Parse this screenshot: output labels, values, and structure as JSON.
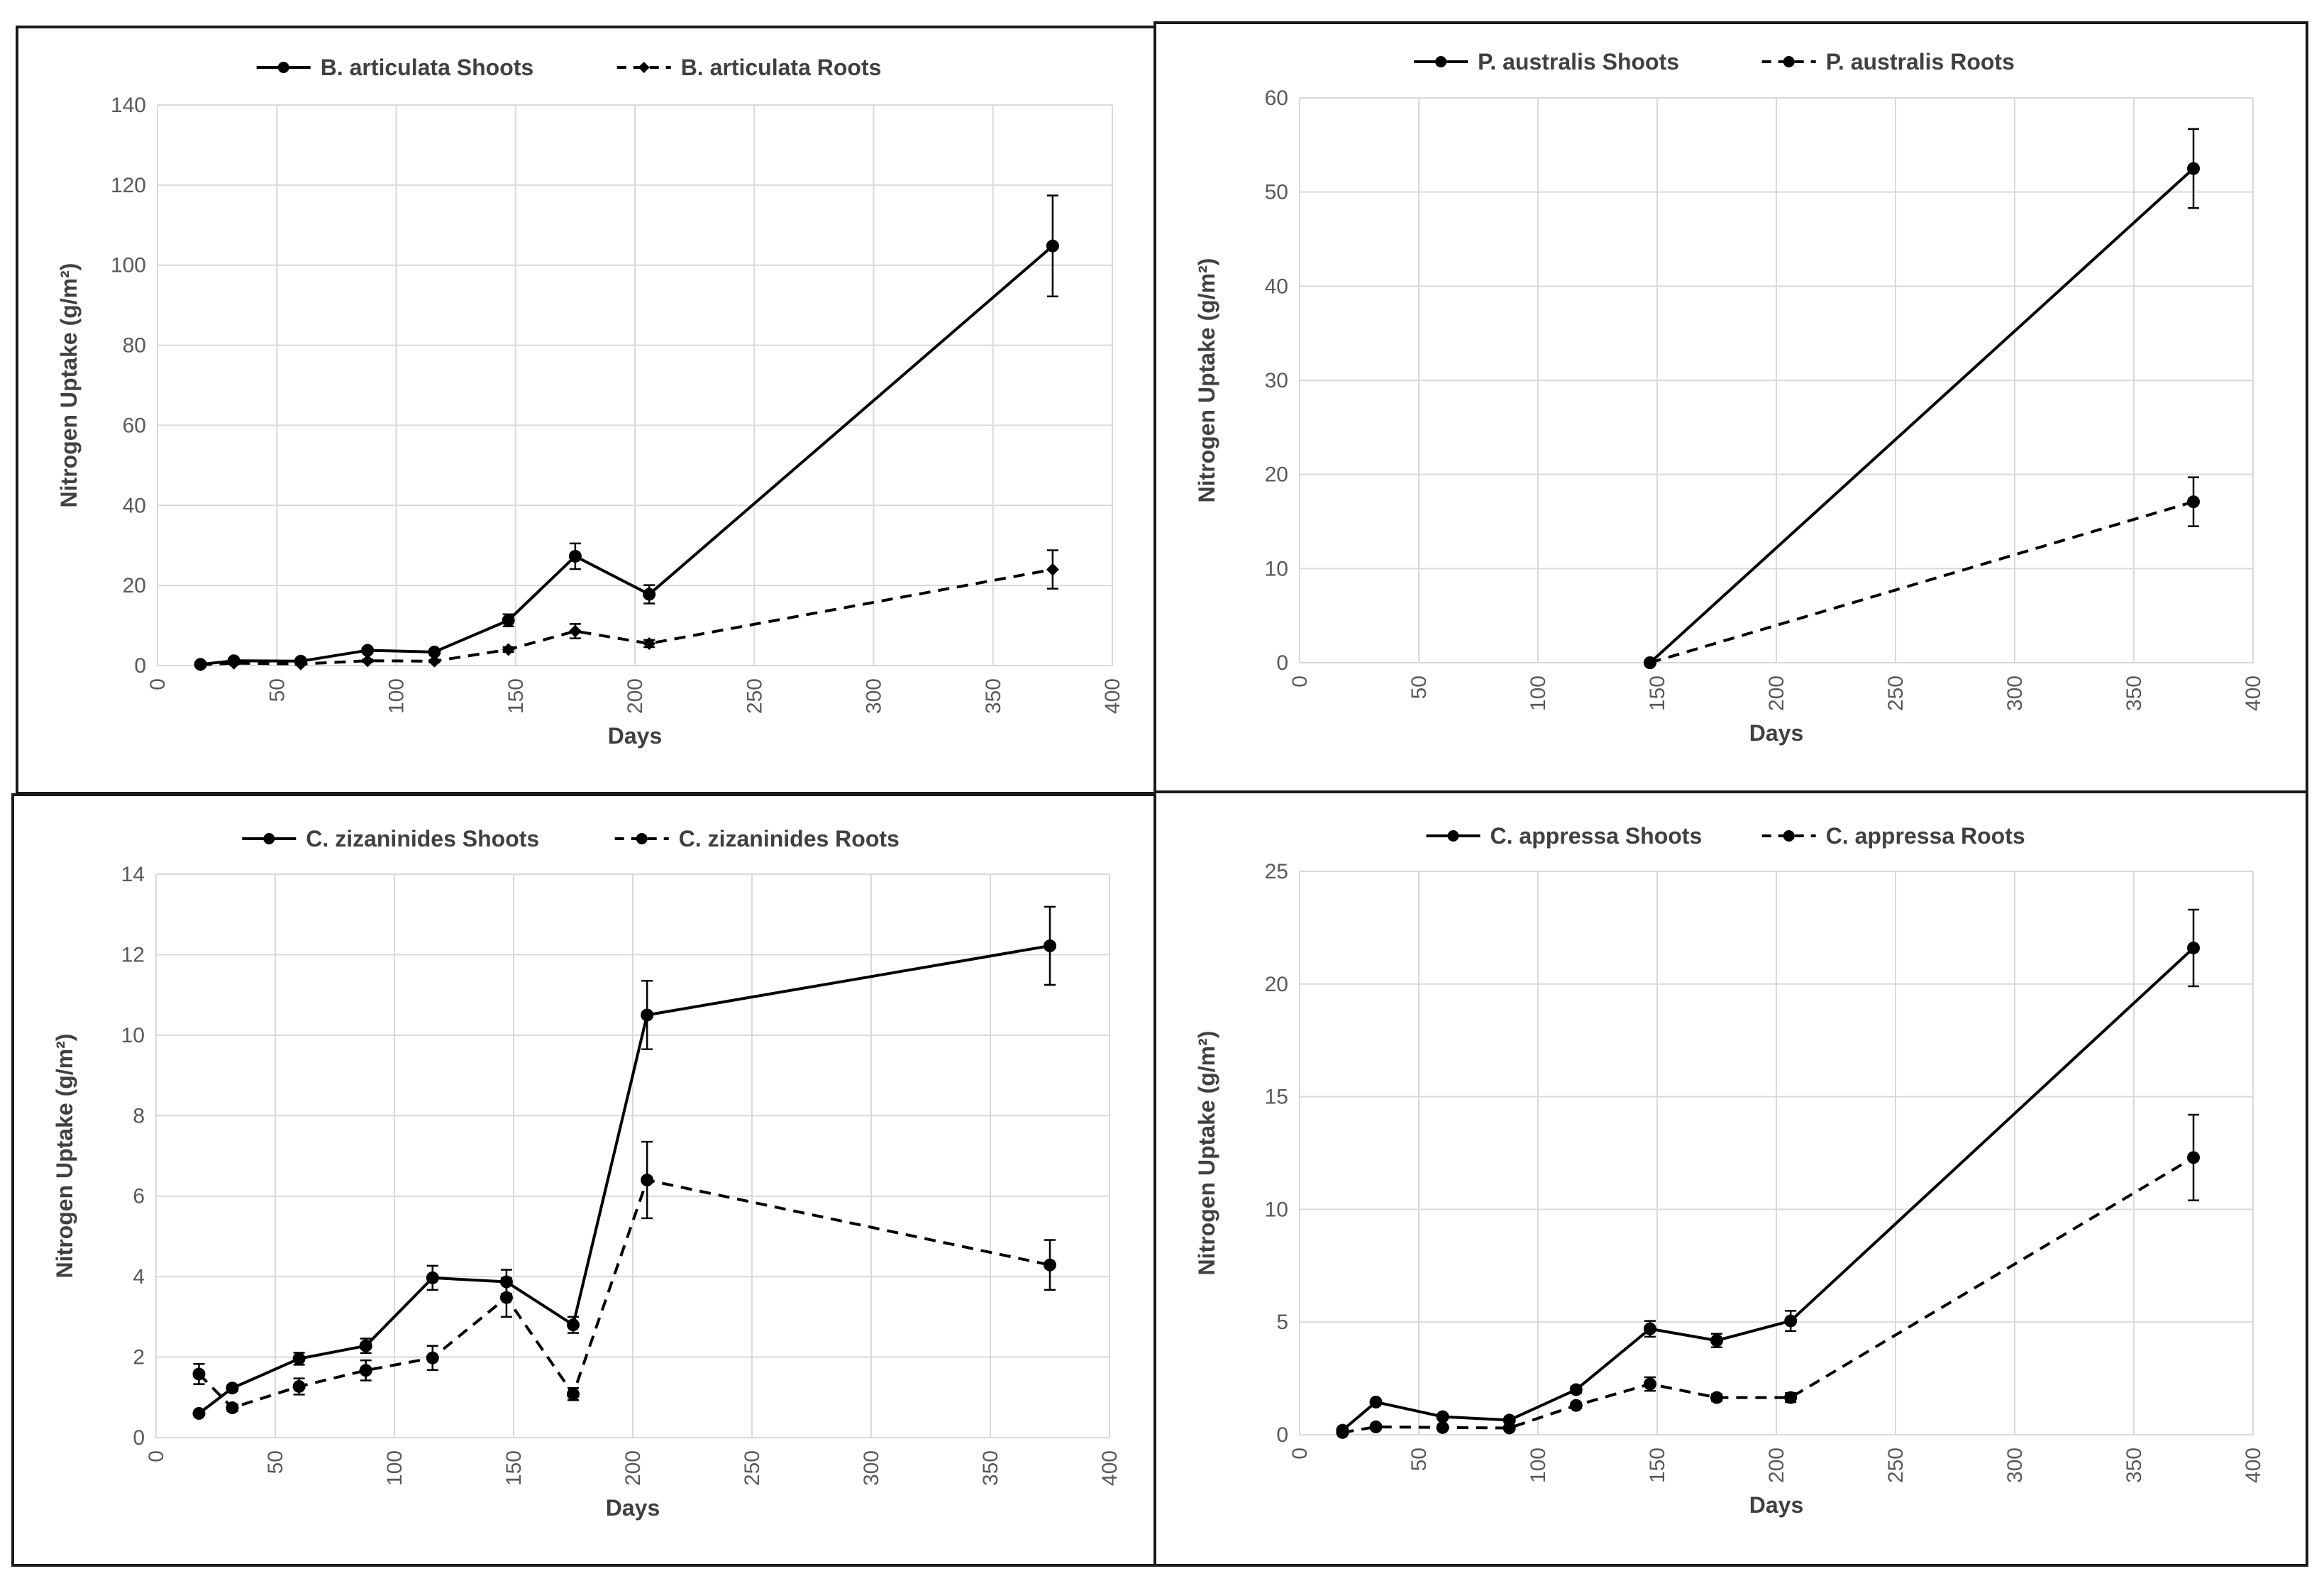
{
  "chart_data": [
    {
      "type": "line",
      "xlabel": "Days",
      "ylabel": "Nitrogen Uptake (g/m²)",
      "xlim": [
        0,
        400
      ],
      "ylim": [
        0,
        140
      ],
      "x_ticks": [
        0,
        50,
        100,
        150,
        200,
        250,
        300,
        350,
        400
      ],
      "y_ticks": [
        0,
        20,
        40,
        60,
        80,
        100,
        120,
        140
      ],
      "grid": true,
      "legend": "top-center",
      "series": [
        {
          "name": "B. articulata Shoots",
          "style": "solid",
          "marker": "circle",
          "x": [
            18,
            32,
            60,
            88,
            116,
            147,
            175,
            206,
            375
          ],
          "y": [
            0.3,
            1.2,
            1.1,
            3.8,
            3.4,
            11.3,
            27.3,
            17.8,
            104.8
          ],
          "err": [
            0.3,
            0.4,
            0.4,
            0.5,
            0.5,
            1.5,
            3.2,
            2.3,
            12.6
          ]
        },
        {
          "name": "B. articulata Roots",
          "style": "dashed",
          "marker": "diamond",
          "x": [
            18,
            32,
            60,
            88,
            116,
            147,
            175,
            206,
            375
          ],
          "y": [
            0.2,
            0.6,
            0.4,
            1.2,
            1.1,
            4.0,
            8.6,
            5.5,
            24.0
          ],
          "err": [
            0.1,
            0.2,
            0.2,
            0.3,
            0.3,
            0.6,
            1.8,
            0.9,
            4.8
          ]
        }
      ]
    },
    {
      "type": "line",
      "xlabel": "Days",
      "ylabel": "Nitrogen Uptake (g/m²)",
      "xlim": [
        0,
        400
      ],
      "ylim": [
        0,
        60
      ],
      "x_ticks": [
        0,
        50,
        100,
        150,
        200,
        250,
        300,
        350,
        400
      ],
      "y_ticks": [
        0,
        10,
        20,
        30,
        40,
        50,
        60
      ],
      "grid": true,
      "legend": "top-center",
      "series": [
        {
          "name": "P. australis Shoots",
          "style": "solid",
          "marker": "circle",
          "x": [
            147,
            375
          ],
          "y": [
            0,
            52.5
          ],
          "err": [
            0,
            4.2
          ]
        },
        {
          "name": "P. australis Roots",
          "style": "dashed",
          "marker": "circle",
          "x": [
            147,
            375
          ],
          "y": [
            0,
            17.1
          ],
          "err": [
            0,
            2.6
          ]
        }
      ]
    },
    {
      "type": "line",
      "xlabel": "Days",
      "ylabel": "Nitrogen Uptake (g/m²)",
      "xlim": [
        0,
        400
      ],
      "ylim": [
        0,
        14
      ],
      "x_ticks": [
        0,
        50,
        100,
        150,
        200,
        250,
        300,
        350,
        400
      ],
      "y_ticks": [
        0,
        2,
        4,
        6,
        8,
        10,
        12,
        14
      ],
      "grid": true,
      "legend": "top-center",
      "series": [
        {
          "name": "C. zizaninides Shoots",
          "style": "solid",
          "marker": "circle",
          "x": [
            18,
            32,
            60,
            88,
            116,
            147,
            175,
            206,
            375
          ],
          "y": [
            0.6,
            1.23,
            1.96,
            2.28,
            3.97,
            3.87,
            2.8,
            10.5,
            12.22
          ],
          "err": [
            0.05,
            0.08,
            0.15,
            0.18,
            0.3,
            0.3,
            0.2,
            0.85,
            0.97
          ]
        },
        {
          "name": "C. zizaninides Roots",
          "style": "dashed",
          "marker": "circle",
          "x": [
            18,
            32,
            60,
            88,
            116,
            147,
            175,
            206,
            375
          ],
          "y": [
            1.58,
            0.74,
            1.27,
            1.67,
            1.98,
            3.48,
            1.08,
            6.4,
            4.29
          ],
          "err": [
            0.25,
            0.08,
            0.2,
            0.25,
            0.3,
            0.48,
            0.15,
            0.95,
            0.62
          ]
        }
      ]
    },
    {
      "type": "line",
      "xlabel": "Days",
      "ylabel": "Nitrogen Uptake (g/m²)",
      "xlim": [
        0,
        400
      ],
      "ylim": [
        0,
        25
      ],
      "x_ticks": [
        0,
        50,
        100,
        150,
        200,
        250,
        300,
        350,
        400
      ],
      "y_ticks": [
        0,
        5,
        10,
        15,
        20,
        25
      ],
      "grid": true,
      "legend": "top-center",
      "series": [
        {
          "name": "C. appressa Shoots",
          "style": "solid",
          "marker": "circle",
          "x": [
            18,
            32,
            60,
            88,
            116,
            147,
            175,
            206,
            375
          ],
          "y": [
            0.2,
            1.45,
            0.8,
            0.65,
            2.0,
            4.7,
            4.18,
            5.05,
            21.6
          ],
          "err": [
            0.1,
            0.1,
            0.1,
            0.1,
            0.15,
            0.35,
            0.3,
            0.45,
            1.7
          ]
        },
        {
          "name": "C. appressa Roots",
          "style": "dashed",
          "marker": "circle",
          "x": [
            18,
            32,
            60,
            88,
            116,
            147,
            175,
            206,
            375
          ],
          "y": [
            0.1,
            0.35,
            0.32,
            0.3,
            1.3,
            2.25,
            1.65,
            1.65,
            12.3
          ],
          "err": [
            0.05,
            0.05,
            0.05,
            0.05,
            0.12,
            0.3,
            0.15,
            0.2,
            1.9
          ]
        }
      ]
    }
  ]
}
